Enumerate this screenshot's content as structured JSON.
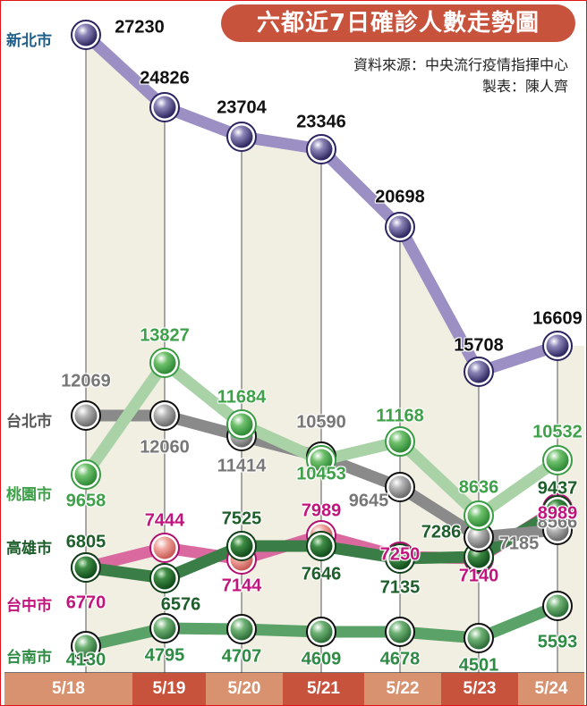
{
  "header": {
    "title": "六都近7日確診人數走勢圖",
    "source": "資料來源：中央流行疫情指揮中心",
    "author": "製表：陳人齊"
  },
  "colors": {
    "title_bg": "#c8533d",
    "band": "#f1eee2",
    "xbar_light": "#d9926f",
    "xbar_dark": "#c8533d",
    "new_taipei": "#9b8fc4",
    "taipei": "#8a8a8a",
    "taoyuan": "#a9d3a6",
    "kaohsiung": "#3b7d47",
    "taichung": "#d9699e",
    "tainan": "#5aa267"
  },
  "legend": {
    "new_taipei": "新北市",
    "taipei": "台北市",
    "taoyuan": "桃園市",
    "kaohsiung": "高雄市",
    "taichung": "台中市",
    "tainan": "台南市"
  },
  "x_labels": [
    "5/18",
    "5/19",
    "5/20",
    "5/21",
    "5/22",
    "5/23",
    "5/24"
  ],
  "chart_data": {
    "type": "line",
    "title": "六都近7日確診人數走勢圖",
    "subtitle": "資料來源：中央流行疫情指揮中心 / 製表：陳人齊",
    "xlabel": "",
    "ylabel": "",
    "grid": false,
    "legend_position": "left (inline series labels)",
    "categories": [
      "5/18",
      "5/19",
      "5/20",
      "5/21",
      "5/22",
      "5/23",
      "5/24"
    ],
    "series": [
      {
        "name": "新北市",
        "values": [
          27230,
          24826,
          23704,
          23346,
          20698,
          15708,
          16609
        ]
      },
      {
        "name": "台北市",
        "values": [
          12069,
          12060,
          11414,
          10590,
          9645,
          7185,
          8566
        ]
      },
      {
        "name": "桃園市",
        "values": [
          9658,
          13827,
          11684,
          10453,
          11168,
          8636,
          10532
        ]
      },
      {
        "name": "高雄市",
        "values": [
          6805,
          6576,
          7525,
          7646,
          7135,
          7286,
          9437
        ]
      },
      {
        "name": "台中市",
        "values": [
          6770,
          7444,
          7144,
          7989,
          7250,
          7140,
          8989
        ]
      },
      {
        "name": "台南市",
        "values": [
          4130,
          4795,
          4707,
          4609,
          4678,
          4501,
          5593
        ]
      }
    ]
  }
}
